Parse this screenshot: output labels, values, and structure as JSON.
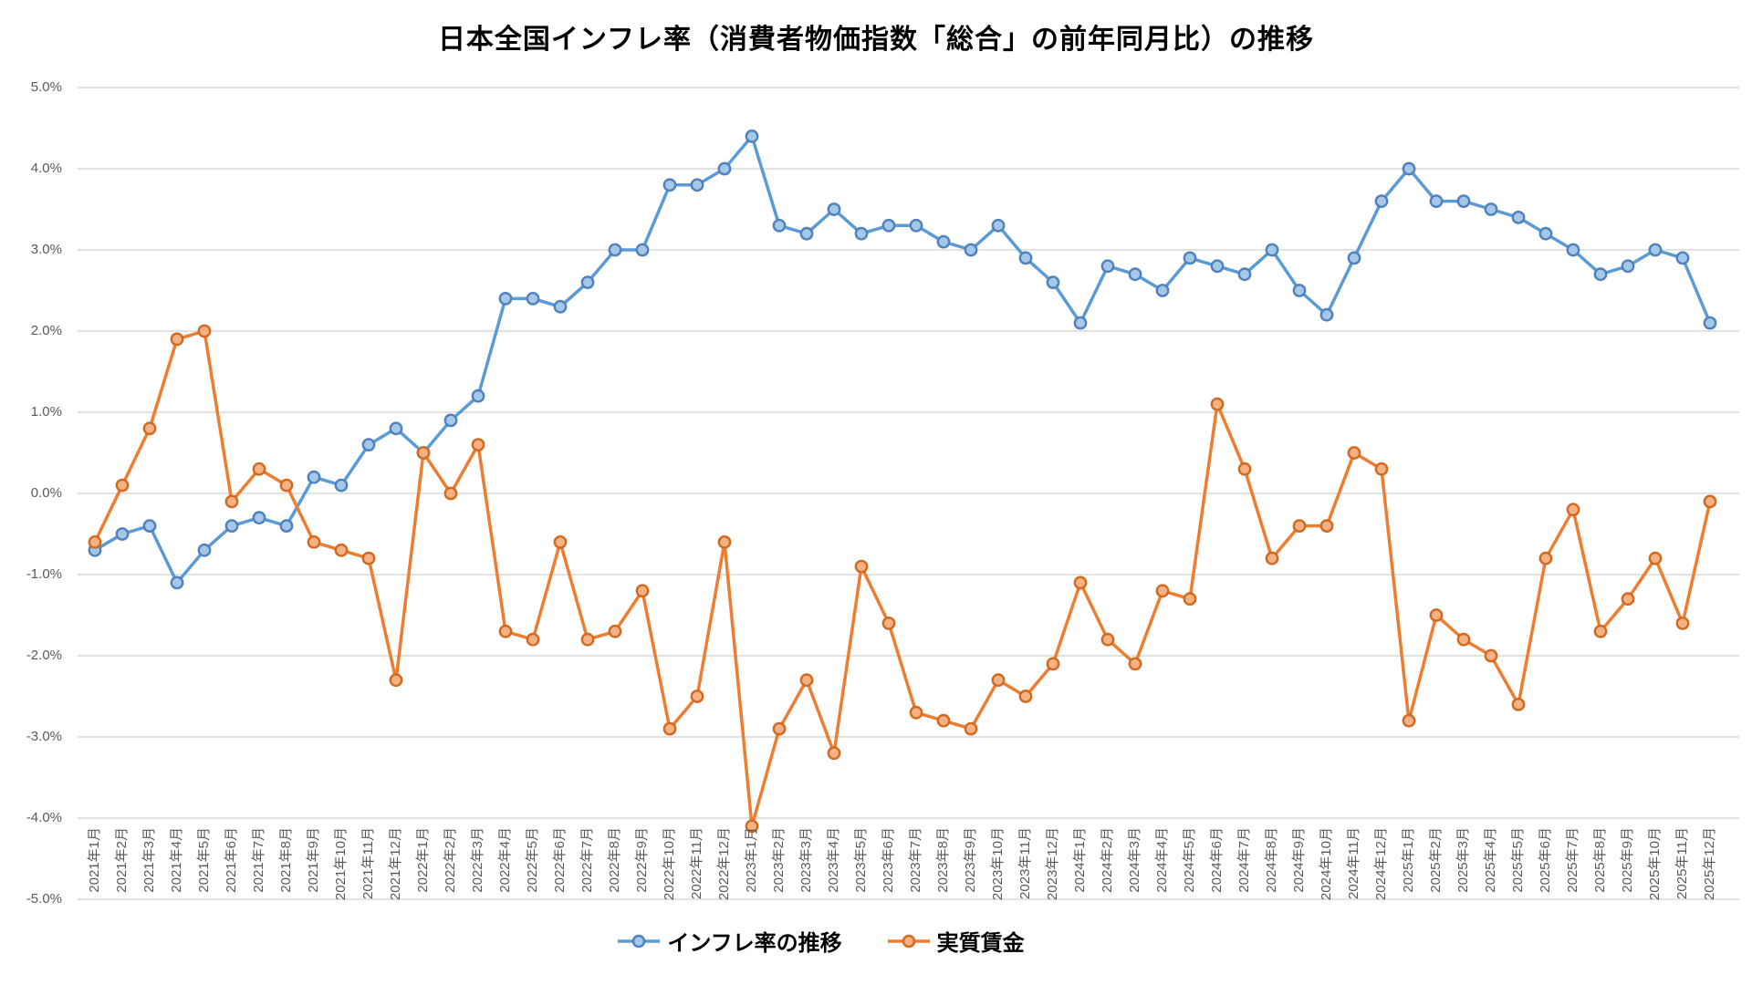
{
  "title": "日本全国インフレ率（消費者物価指数「総合」の前年同月比）の推移",
  "colors": {
    "background": "#FFFFFF",
    "grid": "#D9D9D9",
    "axis_label": "#595959",
    "title": "#000000",
    "inflation_blue": "#5B9BD5",
    "real_wage_orange": "#ED7D31"
  },
  "y_axis": {
    "tick_labels": [
      "5.0%",
      "4.0%",
      "3.0%",
      "2.0%",
      "1.0%",
      "0.0%",
      "-1.0%",
      "-2.0%",
      "-3.0%",
      "-4.0%",
      "-5.0%"
    ],
    "max": 5.0,
    "min": -5.0,
    "step": 1.0
  },
  "chart_data": {
    "type": "line",
    "title": "日本全国インフレ率（消費者物価指数「総合」の前年同月比）の推移",
    "xlabel": "",
    "ylabel": "",
    "ylim": [
      -5.0,
      5.0
    ],
    "y_tick_step": 1.0,
    "grid": true,
    "legend_position": "bottom",
    "categories": [
      "2021年1月",
      "2021年2月",
      "2021年3月",
      "2021年4月",
      "2021年5月",
      "2021年6月",
      "2021年7月",
      "2021年8月",
      "2021年9月",
      "2021年10月",
      "2021年11月",
      "2021年12月",
      "2022年1月",
      "2022年2月",
      "2022年3月",
      "2022年4月",
      "2022年5月",
      "2022年6月",
      "2022年7月",
      "2022年8月",
      "2022年9月",
      "2022年10月",
      "2022年11月",
      "2022年12月",
      "2023年1月",
      "2023年2月",
      "2023年3月",
      "2023年4月",
      "2023年5月",
      "2023年6月",
      "2023年7月",
      "2023年8月",
      "2023年9月",
      "2023年10月",
      "2023年11月",
      "2023年12月",
      "2024年1月",
      "2024年2月",
      "2024年3月",
      "2024年4月",
      "2024年5月",
      "2024年6月",
      "2024年7月",
      "2024年8月",
      "2024年9月",
      "2024年10月",
      "2024年11月",
      "2024年12月",
      "2025年1月",
      "2025年2月",
      "2025年3月",
      "2025年4月",
      "2025年5月",
      "2025年6月",
      "2025年7月",
      "2025年8月",
      "2025年9月",
      "2025年10月",
      "2025年11月",
      "2025年12月"
    ],
    "series": [
      {
        "id": "inflation-rate",
        "name": "インフレ率の推移",
        "line_color": "#5B9BD5",
        "marker_fill": "#A5C8E9",
        "marker_stroke": "#4E81BD",
        "values": [
          -0.7,
          -0.5,
          -0.4,
          -1.1,
          -0.7,
          -0.4,
          -0.3,
          -0.4,
          0.2,
          0.1,
          0.6,
          0.8,
          0.5,
          0.9,
          1.2,
          2.4,
          2.4,
          2.3,
          2.6,
          3.0,
          3.0,
          3.8,
          3.8,
          4.0,
          4.4,
          3.3,
          3.2,
          3.5,
          3.2,
          3.3,
          3.3,
          3.1,
          3.0,
          3.3,
          2.9,
          2.6,
          2.1,
          2.8,
          2.7,
          2.5,
          2.9,
          2.8,
          2.7,
          3.0,
          2.5,
          2.2,
          2.9,
          3.6,
          4.0,
          3.6,
          3.6,
          3.5,
          3.4,
          3.2,
          3.0,
          2.7,
          2.8,
          3.0,
          2.9,
          2.1
        ]
      },
      {
        "id": "real-wages",
        "name": "実質賃金",
        "line_color": "#ED7D31",
        "marker_fill": "#F4B183",
        "marker_stroke": "#D2691E",
        "values": [
          -0.6,
          0.1,
          0.8,
          1.9,
          2.0,
          -0.1,
          0.3,
          0.1,
          -0.6,
          -0.7,
          -0.8,
          -2.3,
          0.5,
          0.0,
          0.6,
          -1.7,
          -1.8,
          -0.6,
          -1.8,
          -1.7,
          -1.2,
          -2.9,
          -2.5,
          -0.6,
          -4.1,
          -2.9,
          -2.3,
          -3.2,
          -0.9,
          -1.6,
          -2.7,
          -2.8,
          -2.9,
          -2.3,
          -2.5,
          -2.1,
          -1.1,
          -1.8,
          -2.1,
          -1.2,
          -1.3,
          1.1,
          0.3,
          -0.8,
          -0.4,
          -0.4,
          0.5,
          0.3,
          -2.8,
          -1.5,
          -1.8,
          -2.0,
          -2.6,
          -0.8,
          -0.2,
          -1.7,
          -1.3,
          -0.8,
          -1.6,
          -0.1
        ]
      }
    ]
  }
}
